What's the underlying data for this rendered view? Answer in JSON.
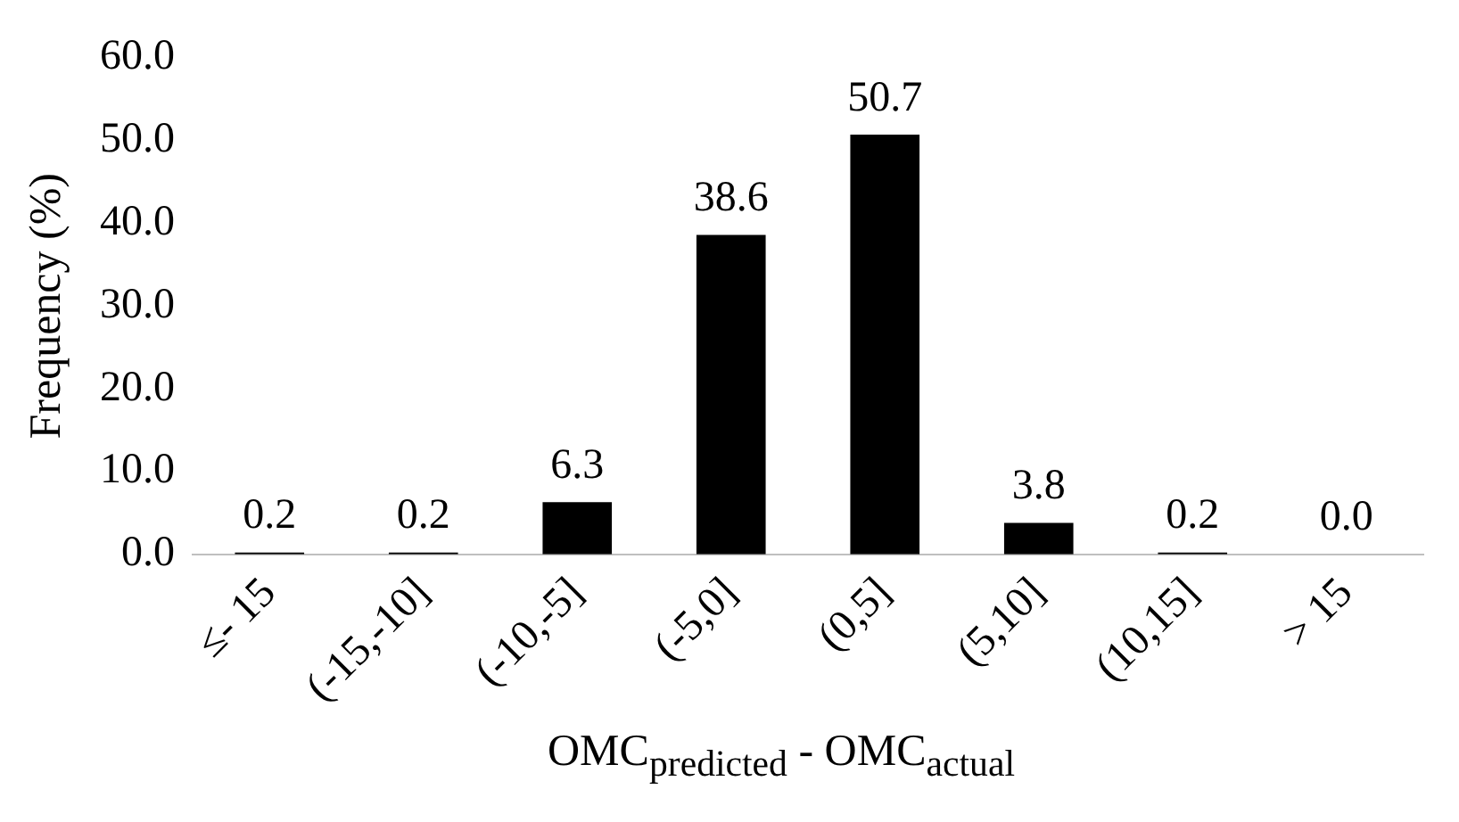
{
  "chart_data": {
    "type": "bar",
    "ylabel": "Frequency (%)",
    "xlabel": "OMC$_{predicted}$ - OMC$_{actual}$",
    "categories": [
      "≤- 15",
      "(-15,-10]",
      "(-10,-5]",
      "(-5,0]",
      "(0,5]",
      "(5,10]",
      "(10,15]",
      "> 15"
    ],
    "values": [
      0.2,
      0.2,
      6.3,
      38.6,
      50.7,
      3.8,
      0.2,
      0.0
    ],
    "value_labels": [
      "0.2",
      "0.2",
      "6.3",
      "38.6",
      "50.7",
      "3.8",
      "0.2",
      "0.0"
    ],
    "color": "#000000",
    "ylim": [
      0,
      60
    ],
    "yticks": [
      {
        "value": 0,
        "label": "0.0"
      },
      {
        "value": 10,
        "label": "10.0"
      },
      {
        "value": 20,
        "label": "20.0"
      },
      {
        "value": 30,
        "label": "30.0"
      },
      {
        "value": 40,
        "label": "40.0"
      },
      {
        "value": 50,
        "label": "50.0"
      },
      {
        "value": 60,
        "label": "60.0"
      }
    ],
    "grid": false,
    "legend": false
  }
}
